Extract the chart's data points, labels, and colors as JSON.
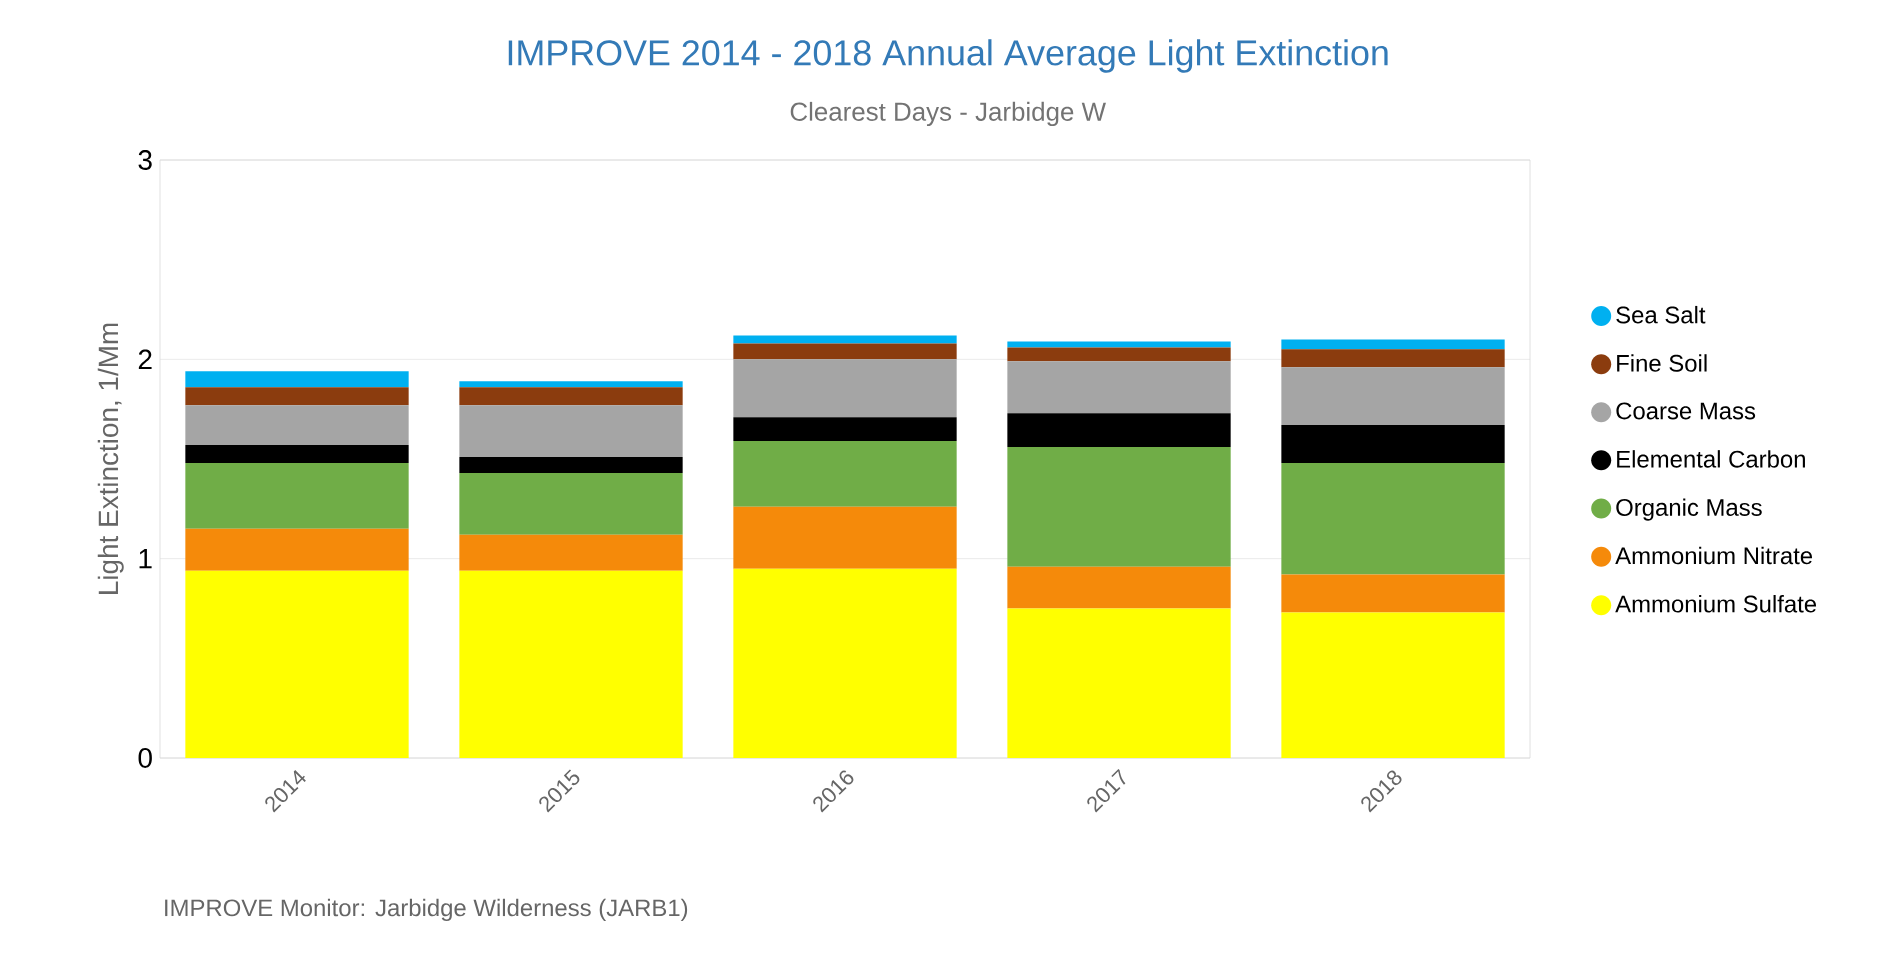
{
  "chart_data": {
    "type": "bar",
    "stacked": true,
    "title": "IMPROVE 2014 - 2018 Annual Average Light Extinction",
    "subtitle": "Clearest Days - Jarbidge W",
    "ylabel": "Light Extinction, 1/Mm",
    "categories": [
      "2014",
      "2015",
      "2016",
      "2017",
      "2018"
    ],
    "series": [
      {
        "name": "Ammonium Sulfate",
        "color": "#ffff00",
        "values": [
          0.94,
          0.94,
          0.95,
          0.75,
          0.73
        ]
      },
      {
        "name": "Ammonium Nitrate",
        "color": "#f58a0a",
        "values": [
          0.21,
          0.18,
          0.31,
          0.21,
          0.19
        ]
      },
      {
        "name": "Organic Mass",
        "color": "#70ad47",
        "values": [
          0.33,
          0.31,
          0.33,
          0.6,
          0.56
        ]
      },
      {
        "name": "Elemental Carbon",
        "color": "#000000",
        "values": [
          0.09,
          0.08,
          0.12,
          0.17,
          0.19
        ]
      },
      {
        "name": "Coarse Mass",
        "color": "#a5a5a5",
        "values": [
          0.2,
          0.26,
          0.29,
          0.26,
          0.29
        ]
      },
      {
        "name": "Fine Soil",
        "color": "#8b3c0e",
        "values": [
          0.09,
          0.09,
          0.08,
          0.07,
          0.09
        ]
      },
      {
        "name": "Sea Salt",
        "color": "#00b0f0",
        "values": [
          0.08,
          0.03,
          0.04,
          0.03,
          0.05
        ]
      }
    ],
    "ylim": [
      0,
      3
    ],
    "yticks": [
      0,
      1,
      2,
      3
    ],
    "grid": "y",
    "legend": "right",
    "annotations": [
      "IMPROVE Monitor: Jarbidge Wilderness (JARB1)"
    ]
  }
}
